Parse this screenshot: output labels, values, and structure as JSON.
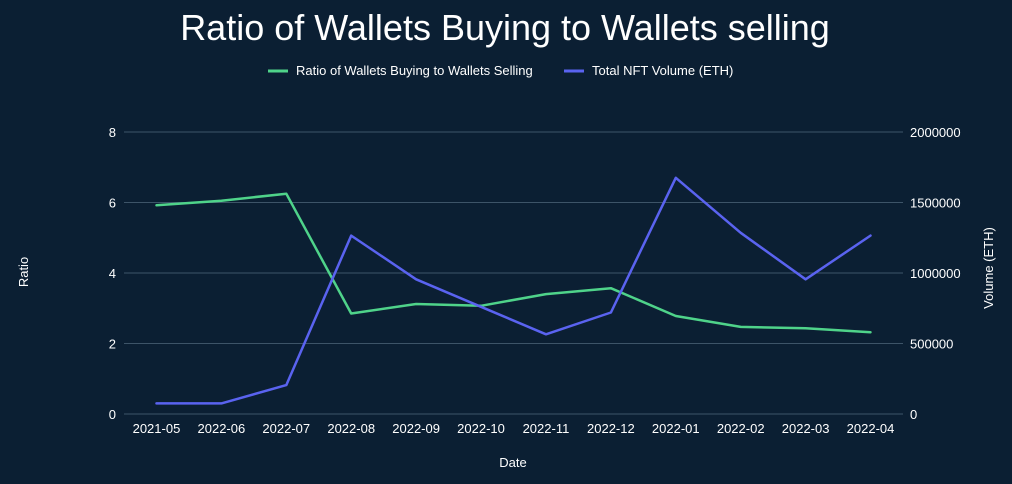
{
  "chart_data": {
    "type": "line",
    "title": "Ratio of Wallets Buying to Wallets selling",
    "xlabel": "Date",
    "ylabel": "Ratio",
    "y2label": "Volume (ETH)",
    "categories": [
      "2021-05",
      "2022-06",
      "2022-07",
      "2022-08",
      "2022-09",
      "2022-10",
      "2022-11",
      "2022-12",
      "2022-01",
      "2022-02",
      "2022-03",
      "2022-04"
    ],
    "ylim": [
      0,
      8
    ],
    "y2lim": [
      0,
      2000000
    ],
    "yticks": [
      "0",
      "2",
      "4",
      "6",
      "8"
    ],
    "y2ticks": [
      "0",
      "500000",
      "1000000",
      "1500000",
      "2000000"
    ],
    "grid": true,
    "legend_position": "top-center",
    "series": [
      {
        "name": "Ratio of Wallets Buying to Wallets Selling",
        "axis": "left",
        "color": "#4fd38a",
        "values": [
          5.92,
          6.05,
          6.25,
          2.85,
          3.12,
          3.07,
          3.4,
          3.57,
          2.78,
          2.47,
          2.43,
          2.32
        ]
      },
      {
        "name": "Total NFT Volume (ETH)",
        "axis": "right",
        "color": "#5a63f0",
        "values": [
          75000,
          75000,
          205000,
          1265000,
          955000,
          760000,
          565000,
          720000,
          1675000,
          1285000,
          955000,
          1265000
        ]
      }
    ]
  }
}
